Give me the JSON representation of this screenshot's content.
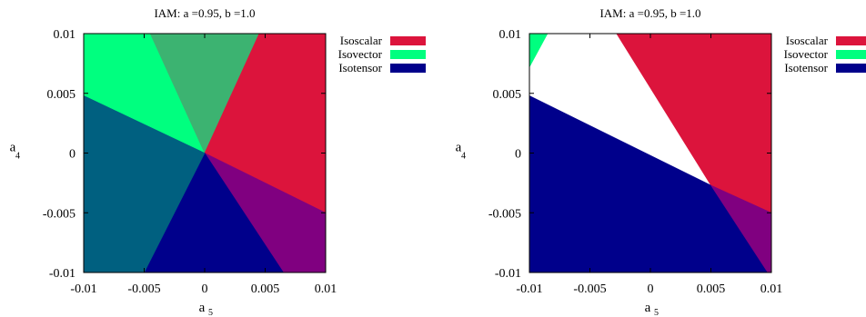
{
  "chart_data": [
    {
      "type": "heatmap",
      "title": "IAM: a =0.95, b =1.0",
      "xlabel": "a",
      "xlabel_subscript": "5",
      "ylabel": "a",
      "ylabel_subscript": "4",
      "xlim": [
        -0.01,
        0.01
      ],
      "ylim": [
        -0.01,
        0.01
      ],
      "xticks": [
        "-0.01",
        "-0.005",
        "0",
        "0.005",
        "0.01"
      ],
      "yticks": [
        "0.01",
        "0.005",
        "0",
        "-0.005",
        "-0.01"
      ],
      "legend_position": "top-right",
      "series": [
        {
          "name": "Isoscalar",
          "color": "#dc143c"
        },
        {
          "name": "Isovector",
          "color": "#00ff7f"
        },
        {
          "name": "Isotensor",
          "color": "#00008b"
        }
      ],
      "regions": [
        {
          "members": [
            "Isovector"
          ],
          "color": "#00ff7f",
          "polygon": [
            [
              -0.0095,
              0.01
            ],
            [
              -0.0045,
              0.01
            ],
            [
              0,
              0
            ],
            [
              -0.01,
              0.0048
            ],
            [
              -0.01,
              0.01
            ]
          ]
        },
        {
          "members": [
            "Isoscalar",
            "Isovector"
          ],
          "color": "#3cb371",
          "polygon": [
            [
              -0.0045,
              0.01
            ],
            [
              0.0045,
              0.01
            ],
            [
              0,
              0
            ]
          ]
        },
        {
          "members": [
            "Isoscalar"
          ],
          "color": "#dc143c",
          "polygon": [
            [
              0.0045,
              0.01
            ],
            [
              0.01,
              0.01
            ],
            [
              0.01,
              -0.005
            ],
            [
              0,
              0
            ]
          ]
        },
        {
          "members": [
            "Isoscalar",
            "Isotensor"
          ],
          "color": "#800080",
          "polygon": [
            [
              0,
              0
            ],
            [
              0.01,
              -0.005
            ],
            [
              0.01,
              -0.01
            ],
            [
              0.0065,
              -0.01
            ]
          ]
        },
        {
          "members": [
            "Isotensor"
          ],
          "color": "#00008b",
          "polygon": [
            [
              0,
              0
            ],
            [
              0.0065,
              -0.01
            ],
            [
              -0.005,
              -0.01
            ]
          ]
        },
        {
          "members": [
            "Isovector",
            "Isotensor"
          ],
          "color": "#006080",
          "polygon": [
            [
              0,
              0
            ],
            [
              -0.005,
              -0.01
            ],
            [
              -0.01,
              -0.01
            ],
            [
              -0.01,
              0.0048
            ]
          ]
        }
      ]
    },
    {
      "type": "heatmap",
      "title": "IAM: a =0.95, b =1.0",
      "xlabel": "a",
      "xlabel_subscript": "5",
      "ylabel": "a",
      "ylabel_subscript": "4",
      "xlim": [
        -0.01,
        0.01
      ],
      "ylim": [
        -0.01,
        0.01
      ],
      "xticks": [
        "-0.01",
        "-0.005",
        "0",
        "0.005",
        "0.01"
      ],
      "yticks": [
        "0.01",
        "0.005",
        "0",
        "-0.005",
        "-0.01"
      ],
      "legend_position": "top-right",
      "series": [
        {
          "name": "Isoscalar",
          "color": "#dc143c"
        },
        {
          "name": "Isovector",
          "color": "#00ff7f"
        },
        {
          "name": "Isotensor",
          "color": "#00008b"
        }
      ],
      "regions": [
        {
          "members": [
            "Isovector"
          ],
          "color": "#00ff7f",
          "polygon": [
            [
              -0.01,
              0.01
            ],
            [
              -0.0085,
              0.01
            ],
            [
              -0.01,
              0.0072
            ]
          ]
        },
        {
          "members": [
            "Isoscalar"
          ],
          "color": "#dc143c",
          "polygon": [
            [
              -0.0028,
              0.01
            ],
            [
              0.01,
              0.01
            ],
            [
              0.01,
              -0.005
            ],
            [
              0.005,
              -0.0027
            ]
          ]
        },
        {
          "members": [
            "Isotensor"
          ],
          "color": "#00008b",
          "polygon": [
            [
              -0.01,
              0.0048
            ],
            [
              0.005,
              -0.0027
            ],
            [
              0.0097,
              -0.01
            ],
            [
              -0.01,
              -0.01
            ]
          ]
        },
        {
          "members": [
            "Isoscalar",
            "Isotensor"
          ],
          "color": "#800080",
          "polygon": [
            [
              0.005,
              -0.0027
            ],
            [
              0.01,
              -0.005
            ],
            [
              0.01,
              -0.01
            ],
            [
              0.0097,
              -0.01
            ]
          ]
        }
      ]
    }
  ]
}
